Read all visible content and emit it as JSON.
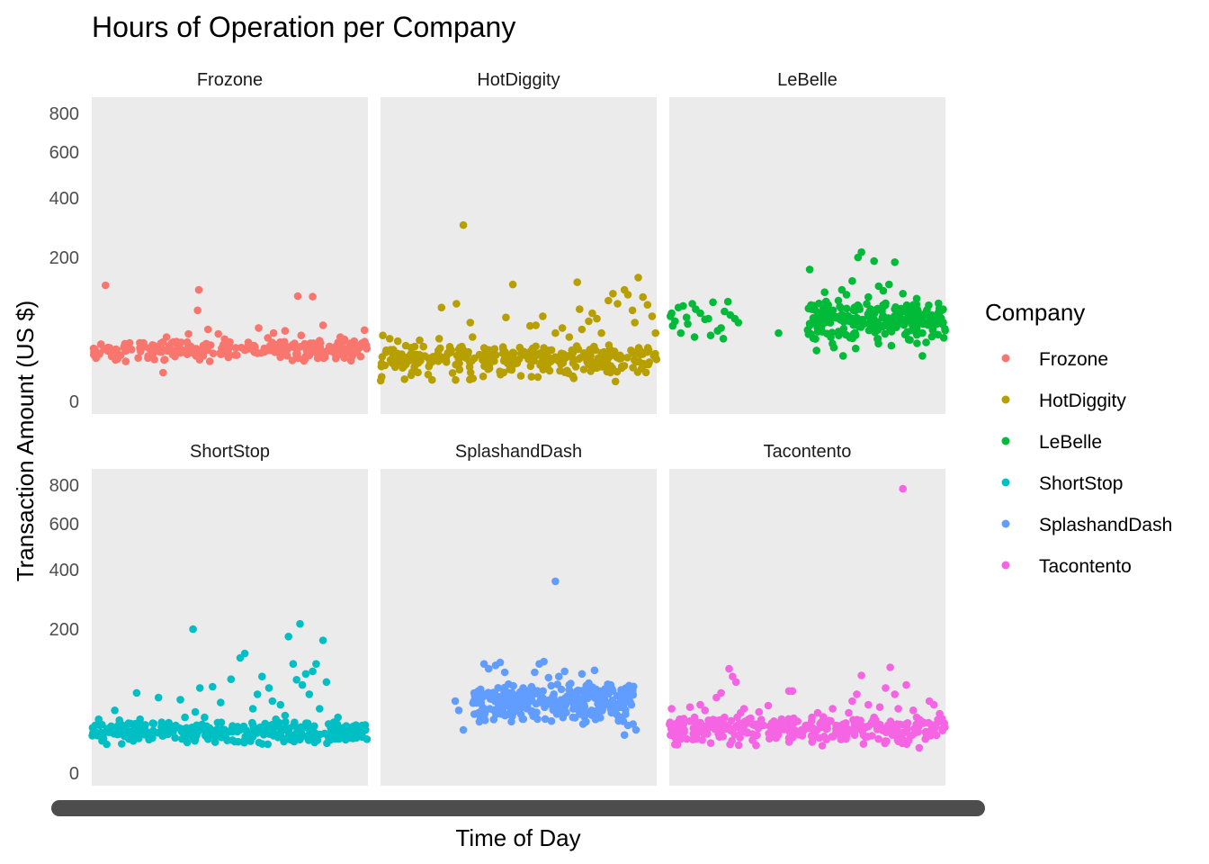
{
  "chart_data": {
    "type": "scatter",
    "title": "Hours of Operation per Company",
    "xlabel": "Time of Day",
    "ylabel": "Transaction Amount (US $)",
    "y_scale": "sqrt",
    "ylim": [
      0,
      850
    ],
    "y_ticks": [
      0,
      200,
      400,
      600,
      800
    ],
    "y_tick_labels": [
      "0",
      "200",
      "400",
      "600",
      "800"
    ],
    "x_ticks": "unreadable",
    "x_axis_labels_overplotted": true,
    "x_range": [
      0,
      24
    ],
    "facets": [
      "Frozone",
      "HotDiggity",
      "LeBelle",
      "ShortStop",
      "SplashandDash",
      "Tacontento"
    ],
    "facet_layout": {
      "rows": 2,
      "cols": 3
    },
    "panel_background": "#ebebeb",
    "grid": false,
    "legend": {
      "title": "Company",
      "position": "right"
    },
    "series": [
      {
        "name": "Frozone",
        "color": "#f8766d",
        "bulk": {
          "x_range": [
            0.05,
            23.95
          ],
          "y_range": [
            14,
            38
          ],
          "count": 260
        },
        "points": [
          [
            1.2,
            130
          ],
          [
            1.4,
            28
          ],
          [
            2.0,
            22
          ],
          [
            4.5,
            33
          ],
          [
            4.9,
            20
          ],
          [
            6.2,
            8
          ],
          [
            6.5,
            40
          ],
          [
            7.0,
            25
          ],
          [
            8.4,
            44
          ],
          [
            9.3,
            120
          ],
          [
            9.2,
            80
          ],
          [
            10.1,
            50
          ],
          [
            11.0,
            44
          ],
          [
            12.0,
            34
          ],
          [
            13.0,
            28
          ],
          [
            14.5,
            52
          ],
          [
            15.3,
            39
          ],
          [
            15.8,
            45
          ],
          [
            16.8,
            48
          ],
          [
            17.9,
            107
          ],
          [
            18.2,
            42
          ],
          [
            19.2,
            106
          ],
          [
            19.5,
            32
          ],
          [
            20.1,
            56
          ],
          [
            20.5,
            25
          ],
          [
            21.6,
            40
          ],
          [
            22.8,
            35
          ],
          [
            23.7,
            49
          ]
        ]
      },
      {
        "name": "HotDiggity",
        "color": "#b79f00",
        "bulk": {
          "x_range": [
            0.0,
            24.0
          ],
          "y_range": [
            3,
            32
          ],
          "count": 310
        },
        "points": [
          [
            0.2,
            42
          ],
          [
            0.8,
            38
          ],
          [
            1.5,
            35
          ],
          [
            2.2,
            30
          ],
          [
            3.4,
            36
          ],
          [
            4.6,
            16
          ],
          [
            5.1,
            38
          ],
          [
            5.3,
            85
          ],
          [
            6.6,
            92
          ],
          [
            7.2,
            300
          ],
          [
            7.8,
            60
          ],
          [
            8.0,
            40
          ],
          [
            10.9,
            68
          ],
          [
            11.5,
            132
          ],
          [
            12.1,
            28
          ],
          [
            13.0,
            55
          ],
          [
            13.5,
            56
          ],
          [
            14.1,
            70
          ],
          [
            14.6,
            25
          ],
          [
            15.2,
            45
          ],
          [
            15.8,
            52
          ],
          [
            16.4,
            40
          ],
          [
            17.1,
            137
          ],
          [
            17.3,
            82
          ],
          [
            17.5,
            50
          ],
          [
            18.1,
            62
          ],
          [
            18.4,
            75
          ],
          [
            18.8,
            66
          ],
          [
            19.2,
            45
          ],
          [
            19.8,
            98
          ],
          [
            20.2,
            112
          ],
          [
            20.6,
            92
          ],
          [
            21.2,
            120
          ],
          [
            21.5,
            110
          ],
          [
            21.9,
            80
          ],
          [
            22.1,
            60
          ],
          [
            22.4,
            148
          ],
          [
            22.8,
            105
          ],
          [
            23.2,
            90
          ],
          [
            23.6,
            70
          ],
          [
            23.9,
            45
          ]
        ]
      },
      {
        "name": "LeBelle",
        "color": "#00ba38",
        "bulk": {
          "x_range": [
            12.0,
            24.0
          ],
          "y_range": [
            30,
            98
          ],
          "count": 250
        },
        "points": [
          [
            0.1,
            70
          ],
          [
            0.2,
            75
          ],
          [
            0.3,
            55
          ],
          [
            0.5,
            62
          ],
          [
            0.8,
            85
          ],
          [
            1.2,
            88
          ],
          [
            1.5,
            68
          ],
          [
            1.6,
            58
          ],
          [
            2.0,
            92
          ],
          [
            2.3,
            82
          ],
          [
            2.7,
            75
          ],
          [
            3.1,
            65
          ],
          [
            3.4,
            66
          ],
          [
            3.8,
            95
          ],
          [
            4.2,
            48
          ],
          [
            4.5,
            52
          ],
          [
            4.8,
            78
          ],
          [
            5.1,
            96
          ],
          [
            5.3,
            72
          ],
          [
            5.7,
            66
          ],
          [
            6.0,
            60
          ],
          [
            1.0,
            45
          ],
          [
            2.2,
            40
          ],
          [
            3.6,
            42
          ],
          [
            4.7,
            38
          ],
          [
            9.5,
            45
          ],
          [
            12.2,
            168
          ],
          [
            13.5,
            115
          ],
          [
            14.7,
            98
          ],
          [
            15.0,
            120
          ],
          [
            15.4,
            110
          ],
          [
            15.9,
            140
          ],
          [
            16.4,
            200
          ],
          [
            16.7,
            215
          ],
          [
            17.3,
            105
          ],
          [
            17.8,
            190
          ],
          [
            18.2,
            128
          ],
          [
            18.6,
            118
          ],
          [
            19.1,
            132
          ],
          [
            19.6,
            187
          ],
          [
            20.3,
            112
          ],
          [
            21.2,
            60
          ],
          [
            21.5,
            102
          ],
          [
            22.0,
            45
          ],
          [
            22.5,
            58
          ],
          [
            22.9,
            50
          ],
          [
            23.3,
            64
          ],
          [
            23.8,
            82
          ],
          [
            12.8,
            25
          ],
          [
            14.3,
            28
          ],
          [
            15.1,
            20
          ],
          [
            16.2,
            27
          ],
          [
            19.3,
            30
          ],
          [
            22.0,
            20
          ]
        ]
      },
      {
        "name": "ShortStop",
        "color": "#00bfc4",
        "bulk": {
          "x_range": [
            0.0,
            24.0
          ],
          "y_range": [
            7,
            26
          ],
          "count": 330
        },
        "points": [
          [
            0.3,
            22
          ],
          [
            0.6,
            28
          ],
          [
            0.9,
            10
          ],
          [
            1.3,
            8
          ],
          [
            1.7,
            19
          ],
          [
            2.0,
            38
          ],
          [
            2.4,
            27
          ],
          [
            3.2,
            24
          ],
          [
            3.6,
            10
          ],
          [
            3.9,
            62
          ],
          [
            4.2,
            28
          ],
          [
            5.0,
            15
          ],
          [
            5.3,
            24
          ],
          [
            5.8,
            55
          ],
          [
            6.2,
            20
          ],
          [
            6.6,
            23
          ],
          [
            7.0,
            18
          ],
          [
            7.3,
            22
          ],
          [
            7.7,
            52
          ],
          [
            8.1,
            30
          ],
          [
            8.8,
            200
          ],
          [
            9.0,
            36
          ],
          [
            9.4,
            70
          ],
          [
            9.8,
            30
          ],
          [
            10.5,
            72
          ],
          [
            11.2,
            48
          ],
          [
            12.1,
            85
          ],
          [
            12.9,
            128
          ],
          [
            13.3,
            138
          ],
          [
            14.0,
            40
          ],
          [
            14.4,
            60
          ],
          [
            14.8,
            90
          ],
          [
            15.4,
            70
          ],
          [
            15.7,
            50
          ],
          [
            16.0,
            28
          ],
          [
            16.4,
            45
          ],
          [
            16.8,
            32
          ],
          [
            17.1,
            180
          ],
          [
            17.5,
            115
          ],
          [
            17.8,
            84
          ],
          [
            18.1,
            215
          ],
          [
            18.3,
            75
          ],
          [
            18.6,
            95
          ],
          [
            18.9,
            60
          ],
          [
            19.2,
            100
          ],
          [
            19.5,
            115
          ],
          [
            19.8,
            40
          ],
          [
            20.1,
            170
          ],
          [
            20.4,
            80
          ],
          [
            21.4,
            30
          ],
          [
            22.5,
            20
          ],
          [
            23.0,
            12
          ],
          [
            23.5,
            22
          ],
          [
            23.8,
            18
          ]
        ]
      },
      {
        "name": "SplashandDash",
        "color": "#619cff",
        "bulk": {
          "x_range": [
            8.0,
            22.0
          ],
          "y_range": [
            20,
            80
          ],
          "count": 280
        },
        "points": [
          [
            6.5,
            50
          ],
          [
            6.8,
            38
          ],
          [
            7.2,
            18
          ],
          [
            8.5,
            65
          ],
          [
            9.0,
            115
          ],
          [
            9.4,
            105
          ],
          [
            10.0,
            112
          ],
          [
            10.4,
            118
          ],
          [
            10.8,
            98
          ],
          [
            11.2,
            60
          ],
          [
            11.8,
            40
          ],
          [
            12.4,
            70
          ],
          [
            13.0,
            50
          ],
          [
            13.4,
            98
          ],
          [
            13.8,
            115
          ],
          [
            14.2,
            120
          ],
          [
            14.6,
            88
          ],
          [
            15.2,
            355
          ],
          [
            15.5,
            90
          ],
          [
            16.0,
            100
          ],
          [
            16.4,
            75
          ],
          [
            16.9,
            55
          ],
          [
            17.5,
            95
          ],
          [
            18.1,
            78
          ],
          [
            18.6,
            102
          ],
          [
            19.0,
            60
          ],
          [
            19.5,
            68
          ],
          [
            20.0,
            75
          ],
          [
            20.5,
            40
          ],
          [
            20.8,
            30
          ],
          [
            21.2,
            14
          ],
          [
            21.5,
            22
          ],
          [
            21.8,
            45
          ],
          [
            22.2,
            18
          ]
        ]
      },
      {
        "name": "Tacontento",
        "color": "#f564e3",
        "bulk": {
          "x_range": [
            0.0,
            24.0
          ],
          "y_range": [
            5,
            32
          ],
          "count": 310
        },
        "points": [
          [
            0.2,
            40
          ],
          [
            0.5,
            15
          ],
          [
            0.9,
            28
          ],
          [
            1.3,
            18
          ],
          [
            1.8,
            42
          ],
          [
            2.2,
            30
          ],
          [
            2.7,
            45
          ],
          [
            3.1,
            38
          ],
          [
            3.5,
            22
          ],
          [
            4.1,
            55
          ],
          [
            4.5,
            62
          ],
          [
            4.8,
            30
          ],
          [
            5.2,
            105
          ],
          [
            5.5,
            90
          ],
          [
            5.8,
            80
          ],
          [
            6.2,
            35
          ],
          [
            6.5,
            40
          ],
          [
            6.9,
            28
          ],
          [
            7.4,
            22
          ],
          [
            7.8,
            36
          ],
          [
            8.2,
            22
          ],
          [
            8.6,
            44
          ],
          [
            9.1,
            26
          ],
          [
            9.6,
            18
          ],
          [
            10.0,
            20
          ],
          [
            10.4,
            65
          ],
          [
            10.7,
            65
          ],
          [
            11.5,
            18
          ],
          [
            12.0,
            22
          ],
          [
            12.4,
            30
          ],
          [
            12.9,
            35
          ],
          [
            13.2,
            25
          ],
          [
            13.7,
            26
          ],
          [
            14.2,
            40
          ],
          [
            14.5,
            22
          ],
          [
            15.0,
            18
          ],
          [
            15.6,
            35
          ],
          [
            15.9,
            50
          ],
          [
            16.3,
            60
          ],
          [
            16.7,
            92
          ],
          [
            17.3,
            45
          ],
          [
            17.8,
            30
          ],
          [
            18.3,
            42
          ],
          [
            18.8,
            70
          ],
          [
            19.2,
            108
          ],
          [
            19.6,
            60
          ],
          [
            19.9,
            40
          ],
          [
            20.3,
            780
          ],
          [
            20.6,
            75
          ],
          [
            21.2,
            38
          ],
          [
            21.5,
            30
          ],
          [
            22.1,
            24
          ],
          [
            22.6,
            50
          ],
          [
            23.0,
            45
          ],
          [
            23.5,
            34
          ],
          [
            23.9,
            24
          ]
        ]
      }
    ]
  }
}
